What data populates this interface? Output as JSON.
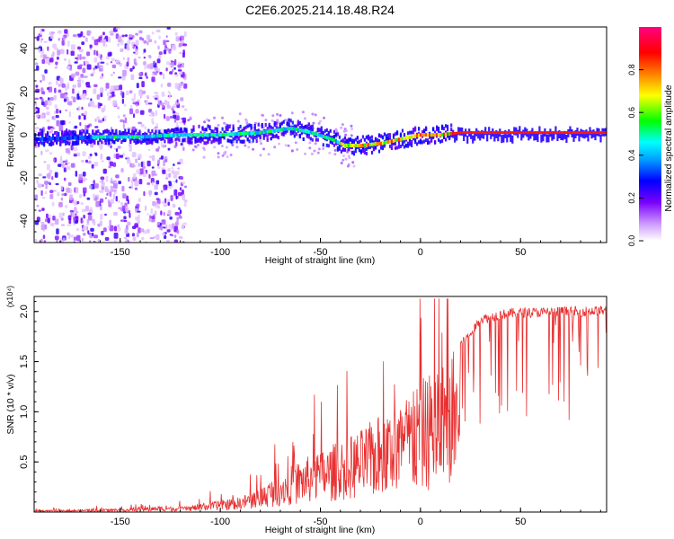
{
  "title": "C2E6.2025.214.18.48.R24",
  "colors": {
    "snr_line": "#e83030",
    "frame": "#000000"
  },
  "chart_data": [
    {
      "type": "heatmap",
      "xlabel": "Height of straight line (km)",
      "ylabel": "Frequency (Hz)",
      "xlim": [
        -193,
        93
      ],
      "ylim": [
        -50,
        50
      ],
      "x_ticks": [
        "-150",
        "-100",
        "-50",
        "0",
        "50"
      ],
      "y_ticks": [
        "-40",
        "-20",
        "0",
        "20",
        "40"
      ],
      "colorbar": {
        "label": "Normalized spectral amplitude",
        "range": [
          0,
          1
        ],
        "ticks": [
          "0.0",
          "0.2",
          "0.4",
          "0.6",
          "0.8"
        ]
      },
      "ridge_frequency": {
        "x": [
          -190,
          -160,
          -140,
          -120,
          -100,
          -80,
          -65,
          -55,
          -45,
          -38,
          -30,
          -20,
          -10,
          0,
          10,
          20,
          40,
          60,
          93
        ],
        "y": [
          -2,
          -1,
          -1,
          0,
          0,
          1,
          3,
          1,
          -2,
          -5,
          -5,
          -4,
          -2,
          0,
          0,
          1,
          1,
          1,
          1
        ]
      },
      "grid": false
    },
    {
      "type": "line",
      "xlabel": "Height of straight line (km)",
      "ylabel": "SNR (10 * v/v)",
      "scale_label": "(x10⁴)",
      "xlim": [
        -193,
        93
      ],
      "ylim": [
        0,
        2.15
      ],
      "x_ticks": [
        "-150",
        "-100",
        "-50",
        "0",
        "50"
      ],
      "y_ticks": [
        "0.5",
        "1.0",
        "1.5",
        "2.0"
      ],
      "series": [
        {
          "x": [
            -193,
            -180,
            -160,
            -140,
            -130,
            -120,
            -110,
            -100,
            -90,
            -80,
            -70,
            -60,
            -50,
            -40,
            -30,
            -20,
            -10,
            0,
            10,
            20,
            25,
            30,
            40,
            50,
            60,
            70,
            80,
            93
          ],
          "values": [
            0.02,
            0.02,
            0.03,
            0.04,
            0.06,
            0.05,
            0.08,
            0.12,
            0.15,
            0.25,
            0.4,
            0.52,
            0.62,
            0.72,
            0.82,
            0.98,
            1.1,
            1.32,
            1.5,
            1.7,
            1.8,
            1.95,
            2.0,
            2.02,
            2.02,
            2.03,
            2.03,
            2.04
          ]
        }
      ],
      "grid": false
    }
  ]
}
